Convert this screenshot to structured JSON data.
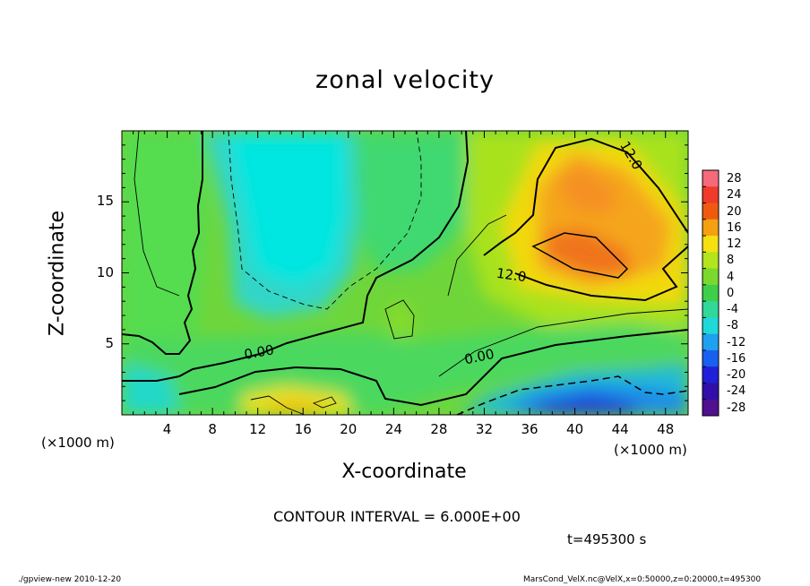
{
  "chart_data": {
    "type": "heatmap",
    "title": "zonal velocity",
    "xlabel": "X-coordinate",
    "ylabel": "Z-coordinate",
    "x_scale_note": "(×1000 m)",
    "y_scale_note": "(×1000 m)",
    "xlim": [
      0,
      50
    ],
    "ylim": [
      0,
      20
    ],
    "x_ticks": [
      4,
      8,
      12,
      16,
      20,
      24,
      28,
      32,
      36,
      40,
      44,
      48
    ],
    "y_ticks": [
      5,
      10,
      15
    ],
    "colorbar": {
      "ticks": [
        28,
        24,
        20,
        16,
        12,
        8,
        4,
        0,
        -4,
        -8,
        -12,
        -16,
        -20,
        -24,
        -28
      ],
      "range": [
        -30,
        30
      ]
    },
    "contour_labels": [
      "12.0",
      "12.0",
      "0.00",
      "0.00"
    ],
    "contour_interval_text": "CONTOUR INTERVAL = 6.000E+00",
    "time_text": "t=495300 s",
    "features": [
      {
        "name": "positive jet core",
        "x": 41,
        "z": 11.5,
        "value": 20
      },
      {
        "name": "upper right maximum",
        "x": 42,
        "z": 15.5,
        "value": 17
      },
      {
        "name": "negative near-surface minimum",
        "x": 40,
        "z": 0.5,
        "value": -22
      },
      {
        "name": "upper left negative region",
        "x": 16,
        "z": 15,
        "value": -9
      },
      {
        "name": "near-surface positive region",
        "x": 16,
        "z": 0.7,
        "value": 14
      }
    ]
  },
  "footer": {
    "left": "./gpview-new   2010-12-20",
    "right": "MarsCond_VelX.nc@VelX,x=0:50000,z=0:20000,t=495300"
  }
}
